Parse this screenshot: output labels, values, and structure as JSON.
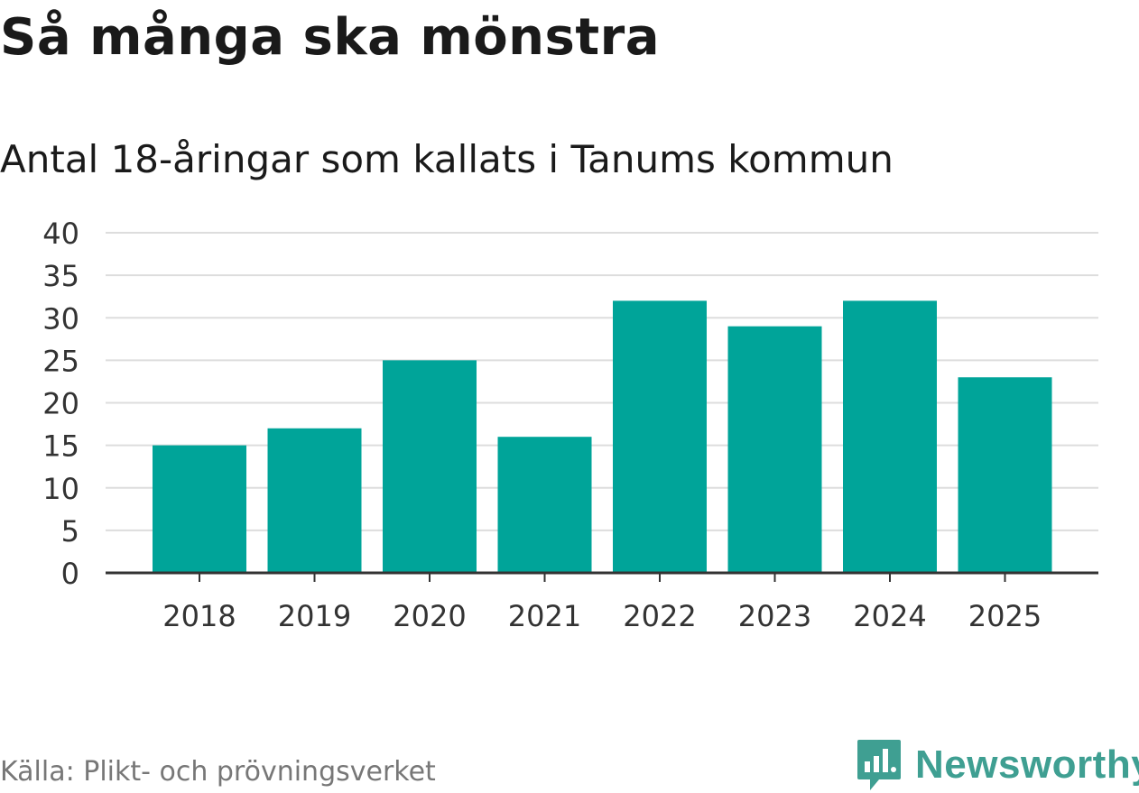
{
  "header": {
    "title": "Så många ska mönstra",
    "subtitle": "Antal 18-åringar som kallats i Tanums kommun"
  },
  "chart_data": {
    "type": "bar",
    "categories": [
      "2018",
      "2019",
      "2020",
      "2021",
      "2022",
      "2023",
      "2024",
      "2025"
    ],
    "values": [
      15,
      17,
      25,
      16,
      32,
      29,
      32,
      23
    ],
    "title": "Så många ska mönstra",
    "subtitle": "Antal 18-åringar som kallats i Tanums kommun",
    "xlabel": "",
    "ylabel": "",
    "ylim": [
      0,
      40
    ],
    "yticks": [
      0,
      5,
      10,
      15,
      20,
      25,
      30,
      35,
      40
    ],
    "grid": true,
    "bar_color": "#00a499",
    "gridline_color": "#dddddd",
    "axis_color": "#333333"
  },
  "footer": {
    "source": "Källa: Plikt- och prövningsverket",
    "brand": "Newsworthy",
    "brand_icon": "newsworthy-logo-icon",
    "brand_color": "#3f9f92"
  }
}
